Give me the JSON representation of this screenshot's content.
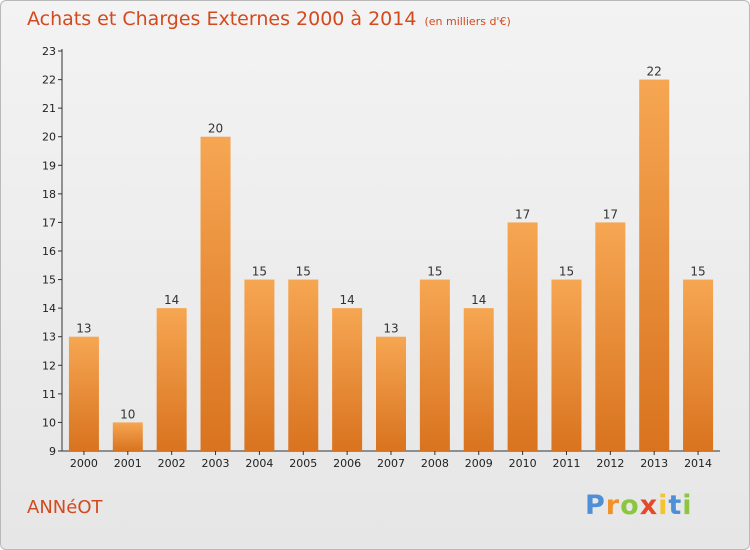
{
  "chart_data": {
    "type": "bar",
    "title": "Achats et Charges Externes 2000 à 2014",
    "subtitle": "(en milliers d'€)",
    "categories": [
      "2000",
      "2001",
      "2002",
      "2003",
      "2004",
      "2005",
      "2006",
      "2007",
      "2008",
      "2009",
      "2010",
      "2011",
      "2012",
      "2013",
      "2014"
    ],
    "values": [
      13,
      10,
      14,
      20,
      15,
      15,
      14,
      13,
      15,
      14,
      17,
      15,
      17,
      22,
      15
    ],
    "ylim": [
      9,
      23
    ],
    "yticks": [
      9,
      10,
      11,
      12,
      13,
      14,
      15,
      16,
      17,
      18,
      19,
      20,
      21,
      22,
      23
    ],
    "grid": false,
    "colors": {
      "bar_top": "#f6a652",
      "bar_bottom": "#d9731f",
      "title": "#d24a1e"
    }
  },
  "location": "ANNéOT",
  "logo": {
    "letters": [
      "P",
      "r",
      "o",
      "x",
      "i",
      "t",
      "i"
    ],
    "colors": [
      "#4f8fd8",
      "#f2912a",
      "#8cc63f",
      "#e5492a",
      "#f4c430",
      "#4f8fd8",
      "#8cc63f"
    ]
  }
}
